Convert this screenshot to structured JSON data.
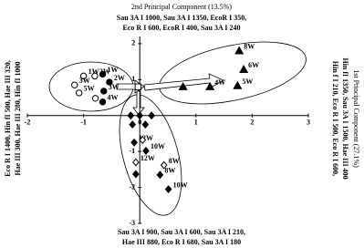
{
  "chart_data": {
    "type": "scatter",
    "title": "2nd Principal Component (13.5%)",
    "top_lines": [
      "Sau 3A I 1000, Sau 3A I 1350, EcoR I 350,",
      "Eco R I 600, EcoR I 400, Sau 3A I 240"
    ],
    "bottom_lines": [
      "Sau 3A I 900, Sau 3A I 600, Sau 3A I 210,",
      "Hae III 880, Eco R I 680, Sau 3A I 180"
    ],
    "left_lines": [
      "Eco R I 1400, Hin fI 500, Hae III 320,",
      "Hae III 300, Hae III 280, Hin fI 1000"
    ],
    "right_lines": [
      "Hin f I 210, Eco R I 500, Eco R I 600,",
      "Hin fI 1350, Sau 3A I 1500, Hae III 400",
      "1st Principal Component (27.1%)"
    ],
    "xlim": [
      -2,
      3
    ],
    "ylim": [
      -3,
      2.2
    ],
    "xticks": [
      -2,
      -1,
      0,
      1,
      2,
      3
    ],
    "yticks": [
      -3,
      -2,
      -1,
      1,
      2
    ],
    "series": [
      {
        "marker": "circle-open",
        "color": "#000000",
        "x": [
          -1.0,
          -0.8,
          -1.16,
          -1.08,
          -0.79
        ],
        "y": [
          1.1,
          1.1,
          0.85,
          0.63,
          0.48
        ],
        "labels": [
          "1W",
          "2W",
          "3W",
          "5W",
          null
        ]
      },
      {
        "marker": "circle-filled",
        "color": "#000000",
        "x": [
          -0.66,
          -0.54,
          -0.64,
          -0.66
        ],
        "y": [
          1.15,
          0.93,
          0.68,
          0.38
        ],
        "labels": [
          "1W",
          "2W",
          "3W",
          "4W"
        ]
      },
      {
        "marker": "square-open",
        "color": "#000000",
        "x": [
          -0.03
        ],
        "y": [
          0.8
        ],
        "labels": [
          null
        ]
      },
      {
        "marker": "triangle-filled",
        "color": "#000000",
        "x": [
          0.77,
          1.25,
          1.74,
          1.85,
          1.77
        ],
        "y": [
          0.8,
          0.8,
          0.83,
          1.28,
          1.8
        ],
        "labels": [
          null,
          "4W",
          "5W",
          "6W",
          "8W"
        ]
      },
      {
        "marker": "diamond-filled",
        "color": "#000000",
        "x": [
          -0.16,
          0.0,
          0.21,
          0.1,
          -0.13,
          -0.1,
          0.11,
          -0.07,
          0.36,
          0.51
        ],
        "y": [
          0.0,
          0.0,
          0.0,
          -0.25,
          -0.25,
          -0.75,
          -0.98,
          -1.63,
          -1.65,
          -2.05
        ],
        "labels": [
          null,
          null,
          null,
          null,
          null,
          "12W",
          "10W",
          null,
          "8W",
          "10W"
        ]
      },
      {
        "marker": "diamond-open",
        "color": "#000000",
        "x": [
          0.05,
          -0.07,
          0.43
        ],
        "y": [
          -0.68,
          -1.3,
          -1.38
        ],
        "labels": [
          null,
          "12W",
          "8W"
        ]
      }
    ]
  }
}
